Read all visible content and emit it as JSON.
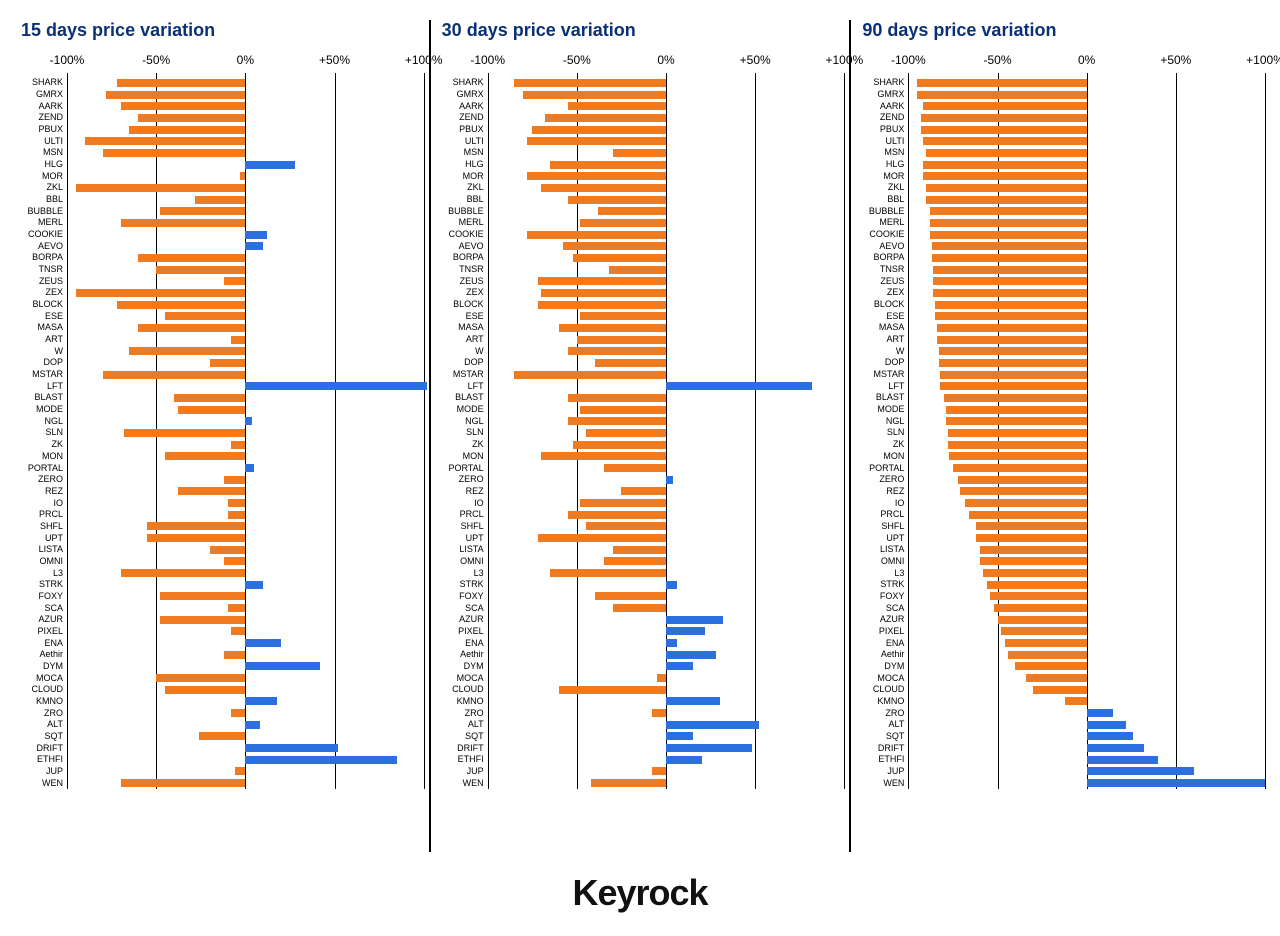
{
  "brand": "Keyrock",
  "title_color": "#0a3176",
  "negative_color": "#f07a1f",
  "positive_color": "#2b6fe0",
  "gridline_color": "#000000",
  "background_color": "#ffffff",
  "xlim": [
    -100,
    100
  ],
  "ticks": [
    {
      "pos": -100,
      "label": "-100%"
    },
    {
      "pos": -50,
      "label": "-50%"
    },
    {
      "pos": 0,
      "label": "0%"
    },
    {
      "pos": 50,
      "label": "+50%"
    },
    {
      "pos": 100,
      "label": "+100%"
    }
  ],
  "tokens": [
    "SHARK",
    "GMRX",
    "AARK",
    "ZEND",
    "PBUX",
    "ULTI",
    "MSN",
    "HLG",
    "MOR",
    "ZKL",
    "BBL",
    "BUBBLE",
    "MERL",
    "COOKIE",
    "AEVO",
    "BORPA",
    "TNSR",
    "ZEUS",
    "ZEX",
    "BLOCK",
    "ESE",
    "MASA",
    "ART",
    "W",
    "DOP",
    "MSTAR",
    "LFT",
    "BLAST",
    "MODE",
    "NGL",
    "SLN",
    "ZK",
    "MON",
    "PORTAL",
    "ZERO",
    "REZ",
    "IO",
    "PRCL",
    "SHFL",
    "UPT",
    "LISTA",
    "OMNI",
    "L3",
    "STRK",
    "FOXY",
    "SCA",
    "AZUR",
    "PIXEL",
    "ENA",
    "Aethir",
    "DYM",
    "MOCA",
    "CLOUD",
    "KMNO",
    "ZRO",
    "ALT",
    "SQT",
    "DRIFT",
    "ETHFI",
    "JUP",
    "WEN"
  ],
  "panels": [
    {
      "title": "15 days price variation",
      "values": [
        -72,
        -78,
        -70,
        -60,
        -65,
        -90,
        -80,
        28,
        -3,
        -95,
        -28,
        -48,
        -70,
        12,
        10,
        -60,
        -50,
        -12,
        -95,
        -72,
        -45,
        -60,
        -8,
        -65,
        -20,
        -80,
        102,
        -40,
        -38,
        4,
        -68,
        -8,
        -45,
        5,
        -12,
        -38,
        -10,
        -10,
        -55,
        -55,
        -20,
        -12,
        -70,
        10,
        -48,
        -10,
        -48,
        -8,
        20,
        -12,
        42,
        -50,
        -45,
        18,
        -8,
        8,
        -26,
        52,
        85,
        -6,
        -70
      ]
    },
    {
      "title": "30 days price variation",
      "values": [
        -85,
        -80,
        -55,
        -68,
        -75,
        -78,
        -30,
        -65,
        -78,
        -70,
        -55,
        -38,
        -48,
        -78,
        -58,
        -52,
        -32,
        -72,
        -70,
        -72,
        -48,
        -60,
        -50,
        -55,
        -40,
        -85,
        82,
        -55,
        -48,
        -55,
        -45,
        -52,
        -70,
        -35,
        4,
        -25,
        -48,
        -55,
        -45,
        -72,
        -30,
        -35,
        -65,
        6,
        -40,
        -30,
        32,
        22,
        6,
        28,
        15,
        -5,
        -60,
        30,
        -8,
        52,
        15,
        48,
        20,
        -8,
        -42
      ]
    },
    {
      "title": "90 days price variation",
      "values": [
        -95,
        -95,
        -92,
        -93,
        -93,
        -92,
        -90,
        -92,
        -92,
        -90,
        -90,
        -88,
        -88,
        -88,
        -87,
        -87,
        -86,
        -86,
        -86,
        -85,
        -85,
        -84,
        -84,
        -83,
        -83,
        -82,
        -82,
        -80,
        -79,
        -79,
        -78,
        -78,
        -77,
        -75,
        -72,
        -71,
        -68,
        -66,
        -62,
        -62,
        -60,
        -60,
        -58,
        -56,
        -54,
        -52,
        -50,
        -48,
        -46,
        -44,
        -40,
        -34,
        -30,
        -12,
        15,
        22,
        26,
        32,
        40,
        60,
        100
      ]
    }
  ]
}
